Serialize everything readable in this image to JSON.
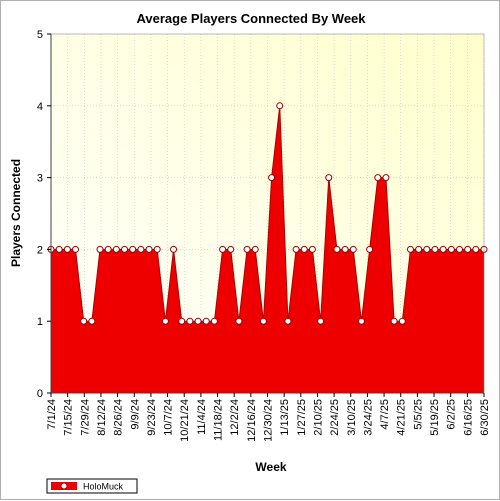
{
  "chart_data": {
    "type": "area",
    "title": "Average Players Connected By Week",
    "xlabel": "Week",
    "ylabel": "Players Connected",
    "ylim": [
      0,
      5
    ],
    "yticks": [
      0,
      1,
      2,
      3,
      4,
      5
    ],
    "xtick_labels": [
      "7/1/24",
      "7/15/24",
      "7/29/24",
      "8/12/24",
      "8/26/24",
      "9/9/24",
      "9/23/24",
      "10/7/24",
      "10/21/24",
      "11/4/24",
      "11/18/24",
      "12/2/24",
      "12/16/24",
      "12/30/24",
      "1/13/25",
      "1/27/25",
      "2/10/25",
      "2/24/25",
      "3/10/25",
      "3/24/25",
      "4/7/25",
      "4/21/25",
      "5/5/25",
      "5/19/25",
      "6/2/25",
      "6/16/25",
      "6/30/25"
    ],
    "series": [
      {
        "name": "HoloMuck",
        "color": "#ee0000",
        "values": [
          2,
          2,
          2,
          2,
          1,
          1,
          2,
          2,
          2,
          2,
          2,
          2,
          2,
          2,
          1,
          2,
          1,
          1,
          1,
          1,
          1,
          2,
          2,
          1,
          2,
          2,
          1,
          3,
          4,
          1,
          2,
          2,
          2,
          1,
          3,
          2,
          2,
          2,
          1,
          2,
          3,
          3,
          1,
          1,
          2,
          2,
          2,
          2,
          2,
          2,
          2,
          2,
          2,
          2
        ]
      }
    ],
    "background": "#ffffe0",
    "grid": true,
    "legend": "bottom-left"
  }
}
